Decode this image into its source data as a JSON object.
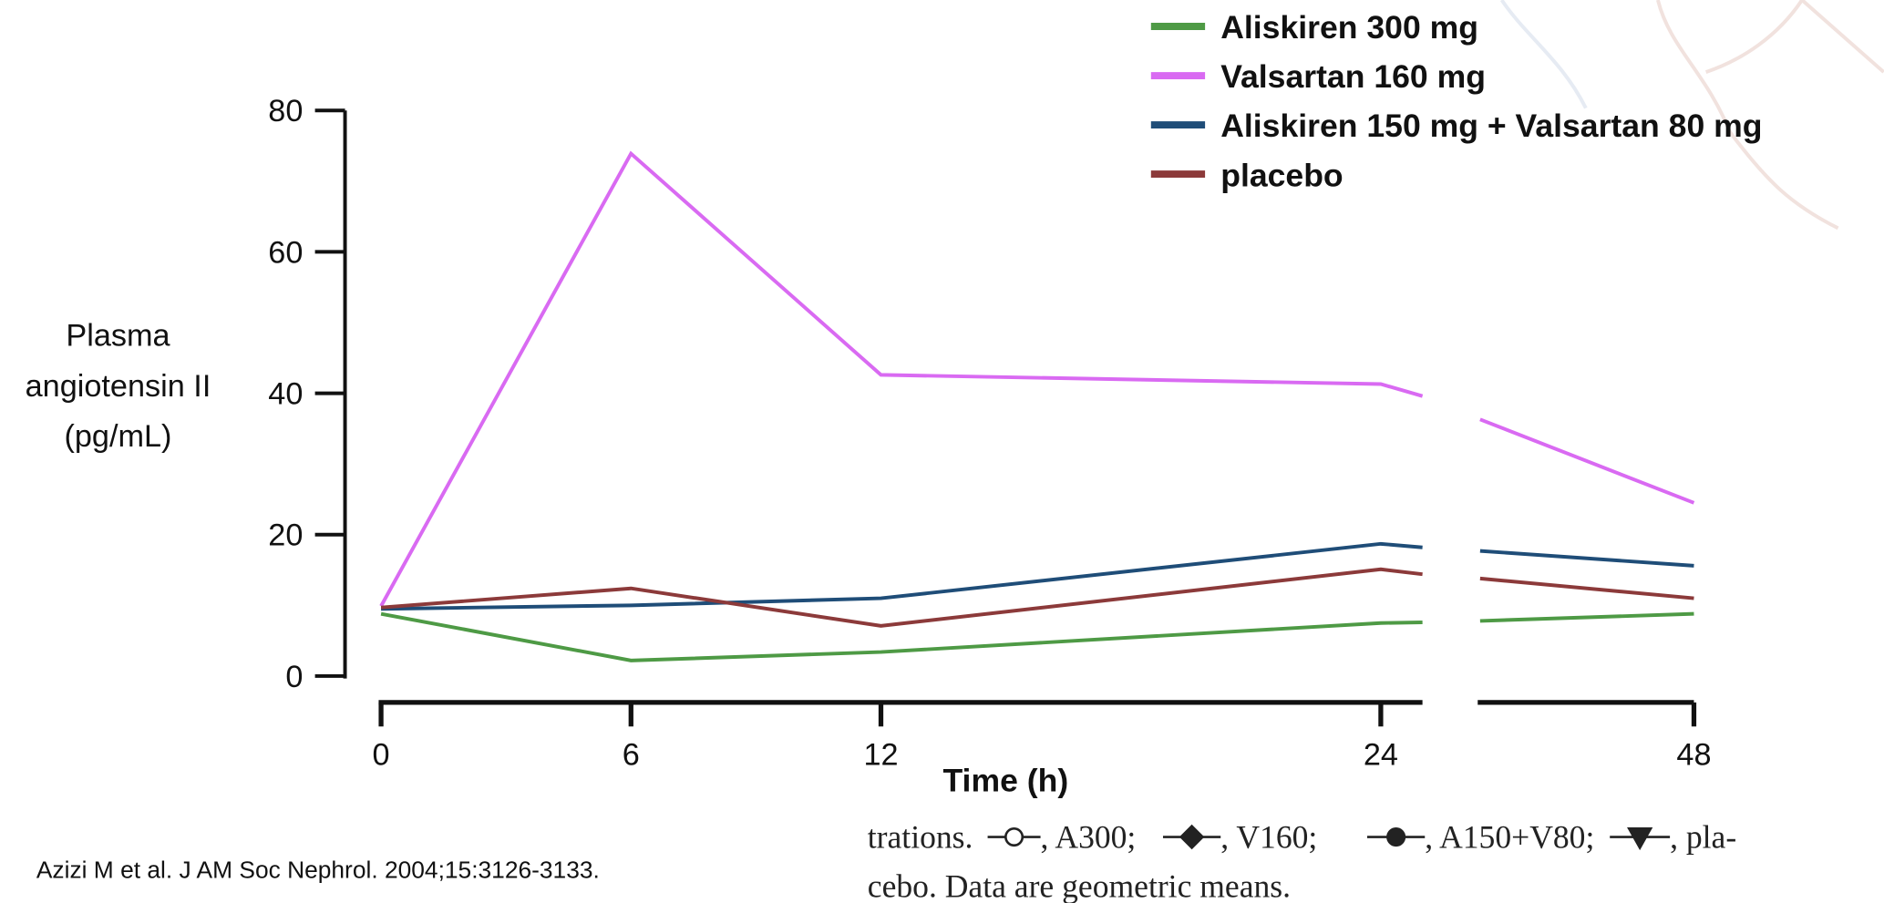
{
  "chart_data": {
    "type": "line",
    "ylabel": [
      "Plasma",
      "angiotensin II",
      "(pg/mL)"
    ],
    "xlabel": "Time (h)",
    "x": [
      0,
      6,
      12,
      24,
      25,
      45,
      48
    ],
    "xsegments": [
      {
        "xlim": [
          0,
          25
        ],
        "xticks": [
          0,
          6,
          12,
          24
        ]
      },
      {
        "xlim": [
          45,
          48
        ],
        "xticks": [
          48
        ]
      }
    ],
    "ylim": [
      0,
      80
    ],
    "yticks": [
      0,
      20,
      40,
      60,
      80
    ],
    "legend": "upper right",
    "series": [
      {
        "name": "Aliskiren 300 mg",
        "color": "#4e9a45",
        "values": [
          8.8,
          2.2,
          3.4,
          7.5,
          7.6,
          7.8,
          8.8
        ]
      },
      {
        "name": "Valsartan 160 mg",
        "color": "#d96af2",
        "values": [
          9.9,
          73.9,
          42.6,
          41.3,
          39.6,
          36.3,
          24.5
        ]
      },
      {
        "name": "Aliskiren 150 mg + Valsartan 80 mg",
        "color": "#1f4d78",
        "values": [
          9.5,
          10.0,
          11.0,
          18.7,
          18.2,
          17.7,
          15.6
        ]
      },
      {
        "name": "placebo",
        "color": "#8c3a3a",
        "values": [
          9.7,
          12.4,
          7.1,
          15.1,
          14.4,
          13.8,
          11.0
        ]
      }
    ]
  },
  "citation": "Azizi M et al. J AM Soc Nephrol. 2004;15:3126-3133.",
  "caption": {
    "line1": [
      "trations.",
      ", A300;",
      ", V160;",
      ", A150+V80;",
      ", pla-"
    ],
    "line2": "cebo. Data are geometric means."
  }
}
